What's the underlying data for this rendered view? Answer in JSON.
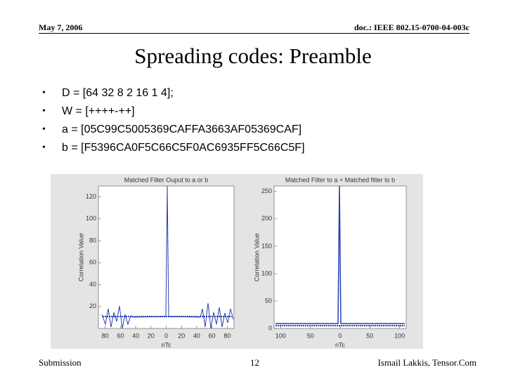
{
  "header": {
    "date": "May 7, 2006",
    "doc": "doc.: IEEE 802.15-0700-04-003c"
  },
  "title": "Spreading codes: Preamble",
  "bullets": [
    "D  = [64 32 8 2 16 1 4];",
    "W = [++++-++]",
    "a  = [05C99C5005369CAFFA3663AF05369CAF]",
    "b = [F5396CA0F5C66C5F0AC6935FF5C66C5F]"
  ],
  "plots": [
    {
      "title": "Matched Filter Ouput to a or b",
      "ylabel": "Correlation Value",
      "xlabel": "nTc",
      "ylim": [
        0,
        130
      ],
      "yticks": [
        20,
        40,
        60,
        80,
        100,
        120
      ],
      "xticks": [
        "80",
        "60",
        "40",
        "20",
        "0",
        "20",
        "40",
        "60",
        "80"
      ]
    },
    {
      "title": "Matched Filter to a + Matched filter to b",
      "ylabel": "Correlation Value",
      "xlabel": "nTc",
      "ylim": [
        0,
        260
      ],
      "yticks": [
        0,
        50,
        100,
        150,
        200,
        250
      ],
      "xticks": [
        "100",
        "50",
        "0",
        "50",
        "100"
      ]
    }
  ],
  "footer": {
    "left": "Submission",
    "page": "12",
    "right": "Ismail Lakkis, Tensor.Com"
  }
}
